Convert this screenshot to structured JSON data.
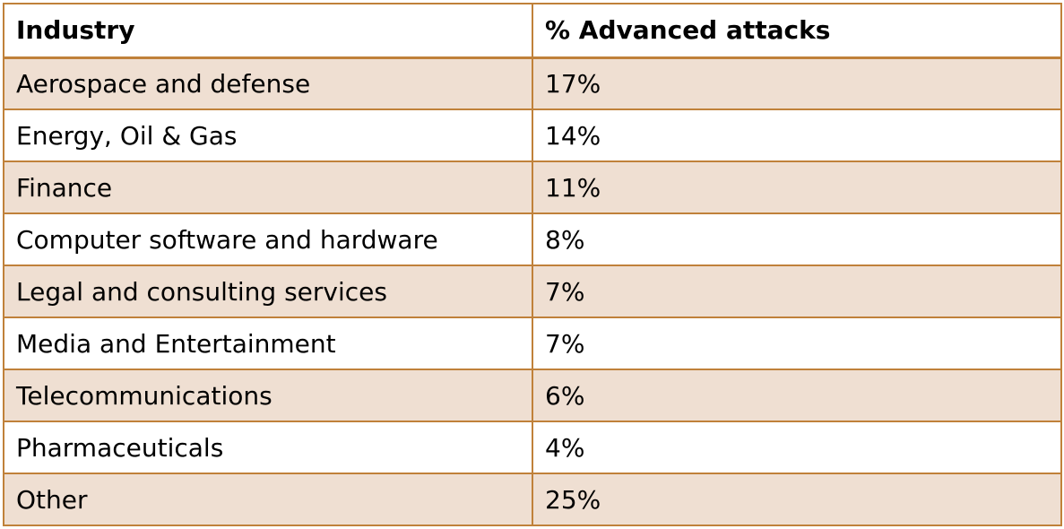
{
  "chart_data": {
    "type": "table",
    "columns": [
      "Industry",
      "% Advanced attacks"
    ],
    "rows": [
      {
        "industry": "Aerospace and defense",
        "percent": "17%"
      },
      {
        "industry": "Energy, Oil & Gas",
        "percent": "14%"
      },
      {
        "industry": "Finance",
        "percent": "11%"
      },
      {
        "industry": "Computer software and hardware",
        "percent": "8%"
      },
      {
        "industry": "Legal and consulting services",
        "percent": "7%"
      },
      {
        "industry": "Media and Entertainment",
        "percent": "7%"
      },
      {
        "industry": "Telecommunications",
        "percent": "6%"
      },
      {
        "industry": "Pharmaceuticals",
        "percent": "4%"
      },
      {
        "industry": "Other",
        "percent": "25%"
      }
    ]
  },
  "colors": {
    "border": "#c0813a",
    "band": "#efdfd2",
    "background": "#ffffff",
    "text": "#000000"
  }
}
